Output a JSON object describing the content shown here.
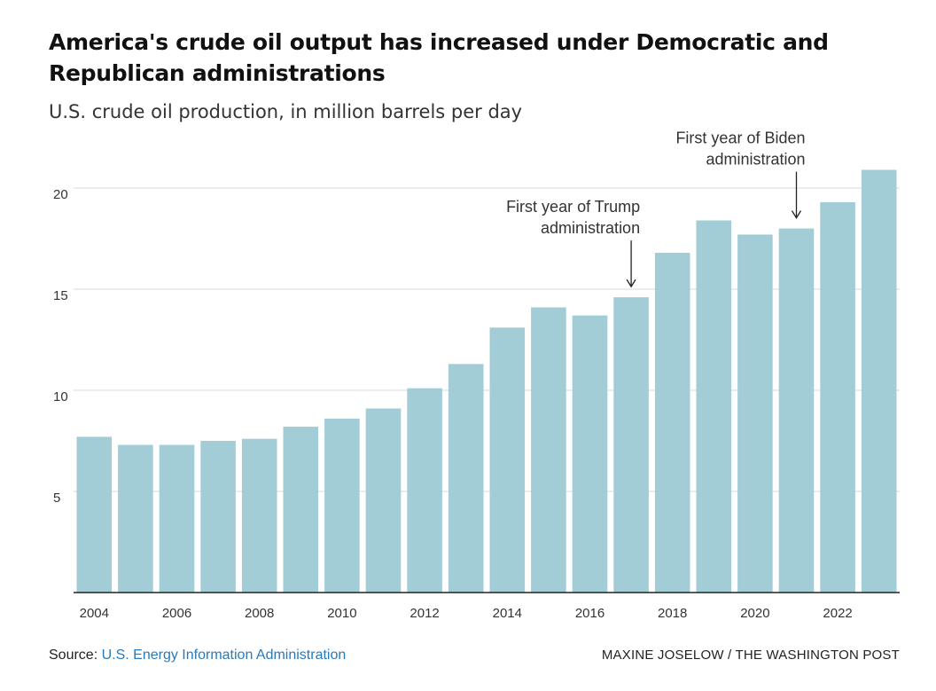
{
  "title": "America's crude oil output has increased under Democratic and Republican administrations",
  "subtitle": "U.S. crude oil production, in million barrels per day",
  "source_label": "Source:",
  "source_link": "U.S. Energy Information Administration",
  "credit": "MAXINE JOSELOW / THE WASHINGTON POST",
  "colors": {
    "bar": "#a2cdd6",
    "grid": "#d9d9d9",
    "axis": "#222222",
    "text": "#333333"
  },
  "chart_data": {
    "type": "bar",
    "x": [
      2004,
      2005,
      2006,
      2007,
      2008,
      2009,
      2010,
      2011,
      2012,
      2013,
      2014,
      2015,
      2016,
      2017,
      2018,
      2019,
      2020,
      2021,
      2022,
      2023
    ],
    "values": [
      7.7,
      7.3,
      7.3,
      7.5,
      7.6,
      8.2,
      8.6,
      9.1,
      10.1,
      11.3,
      13.1,
      14.1,
      13.7,
      14.6,
      16.8,
      18.4,
      17.7,
      18.0,
      19.3,
      20.9
    ],
    "xtick_labels": [
      "2004",
      "2006",
      "2008",
      "2010",
      "2012",
      "2014",
      "2016",
      "2018",
      "2020",
      "2022"
    ],
    "ytick_labels": [
      "5",
      "10",
      "15",
      "20"
    ],
    "ylim": [
      0,
      22
    ],
    "grid": true,
    "annotations": [
      {
        "x": 2017,
        "text_lines": [
          "First year of Trump",
          "administration"
        ]
      },
      {
        "x": 2021,
        "text_lines": [
          "First year of Biden",
          "administration"
        ]
      }
    ]
  }
}
